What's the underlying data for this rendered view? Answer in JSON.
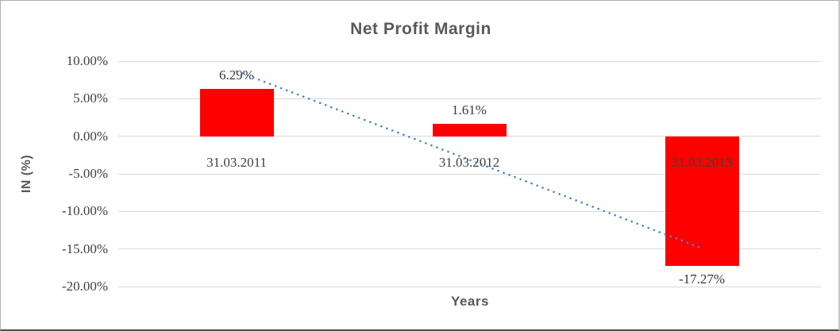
{
  "chart_data": {
    "type": "bar",
    "title": "Net Profit Margin",
    "categories": [
      "31.03.2011",
      "31.03.2012",
      "31.03.2013"
    ],
    "values": [
      6.29,
      1.61,
      -17.27
    ],
    "data_labels": [
      "6.29%",
      "1.61%",
      "-17.27%"
    ],
    "xlabel": "Years",
    "ylabel": "IN (%)",
    "ylim": [
      -20,
      10
    ],
    "yticks": [
      10,
      5,
      0,
      -5,
      -10,
      -15,
      -20
    ],
    "ytick_labels": [
      "10.00%",
      "5.00%",
      "0.00%",
      "-5.00%",
      "-10.00%",
      "-15.00%",
      "-20.00%"
    ],
    "grid": true,
    "legend": false,
    "bar_color": "#ff0000",
    "trendline": {
      "type": "linear",
      "style": "dotted",
      "color": "#4a86c8",
      "endpoint_values": [
        8.66,
        -14.9
      ],
      "spans_categories": [
        "31.03.2011",
        "31.03.2013"
      ]
    },
    "colors": {
      "title_text": "#595959",
      "axis_title_text": "#595959",
      "tick_text": "#404040",
      "category_text": "#404040",
      "data_label_text": "#3a3a3a",
      "gridline": "#d9d9d9",
      "background": "#ffffff"
    }
  }
}
